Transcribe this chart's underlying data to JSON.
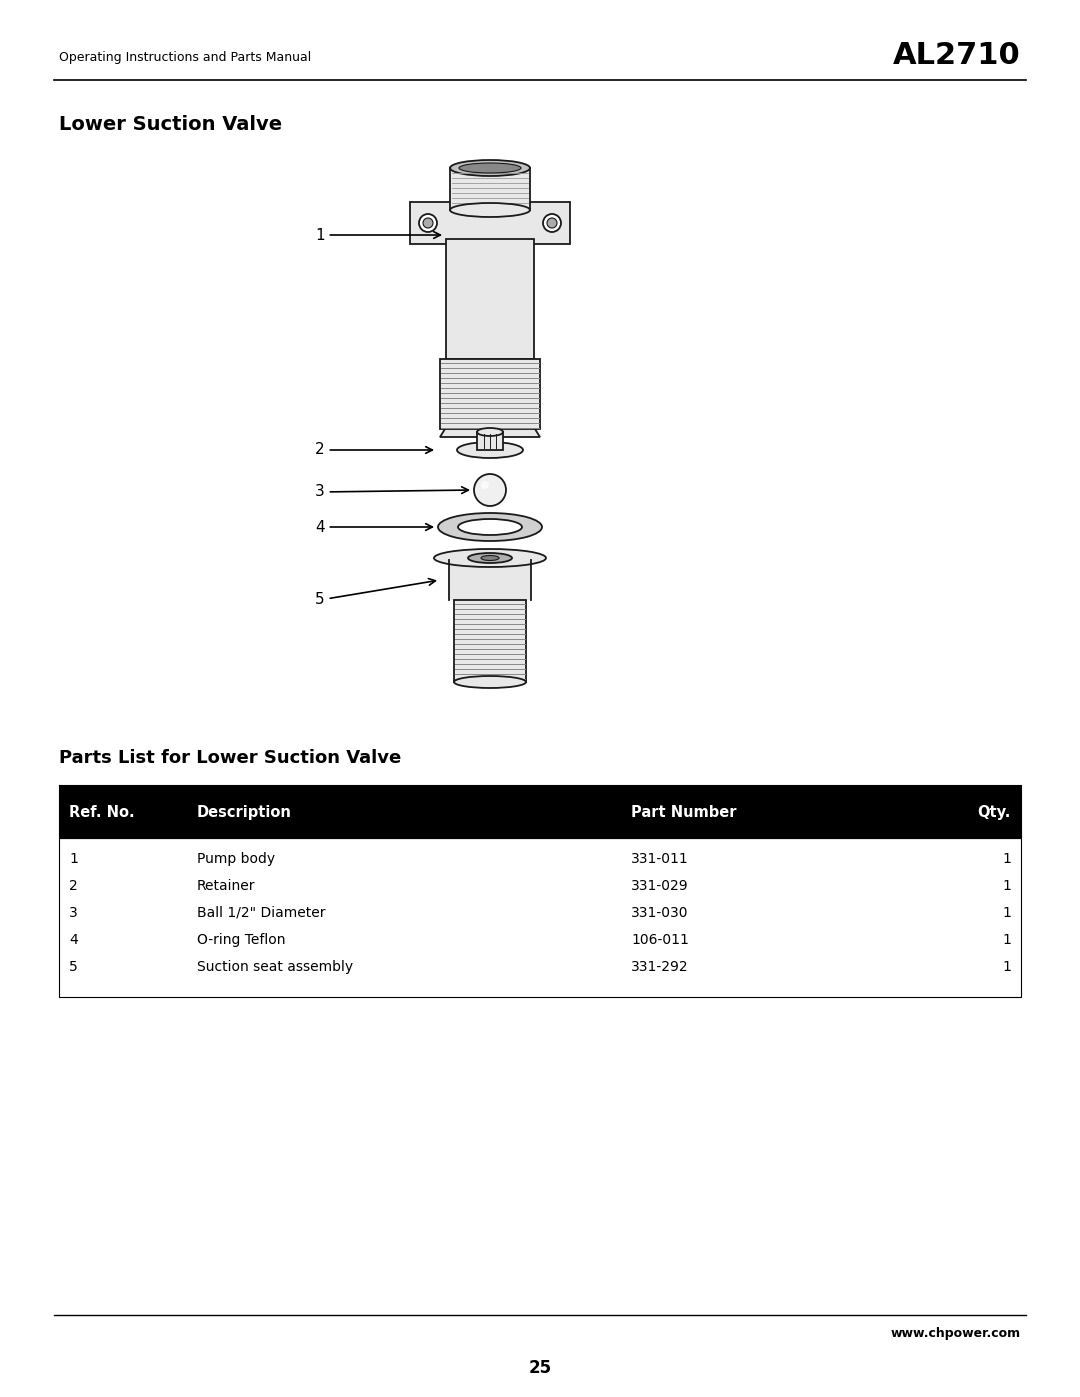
{
  "page_title": "AL2710",
  "page_subtitle": "Operating Instructions and Parts Manual",
  "section_title": "Lower Suction Valve",
  "table_title": "Parts List for Lower Suction Valve",
  "header_bg": "#000000",
  "header_text_color": "#ffffff",
  "row_text_color": "#000000",
  "columns": [
    "Ref. No.",
    "Description",
    "Part Number",
    "Qty."
  ],
  "rows": [
    [
      "1",
      "Pump body",
      "331-011",
      "1"
    ],
    [
      "2",
      "Retainer",
      "331-029",
      "1"
    ],
    [
      "3",
      "Ball 1/2\" Diameter",
      "331-030",
      "1"
    ],
    [
      "4",
      "O-ring Teflon",
      "106-011",
      "1"
    ],
    [
      "5",
      "Suction seat assembly",
      "331-292",
      "1"
    ]
  ],
  "footer_url": "www.chpower.com",
  "page_number": "25",
  "bg_color": "#ffffff"
}
